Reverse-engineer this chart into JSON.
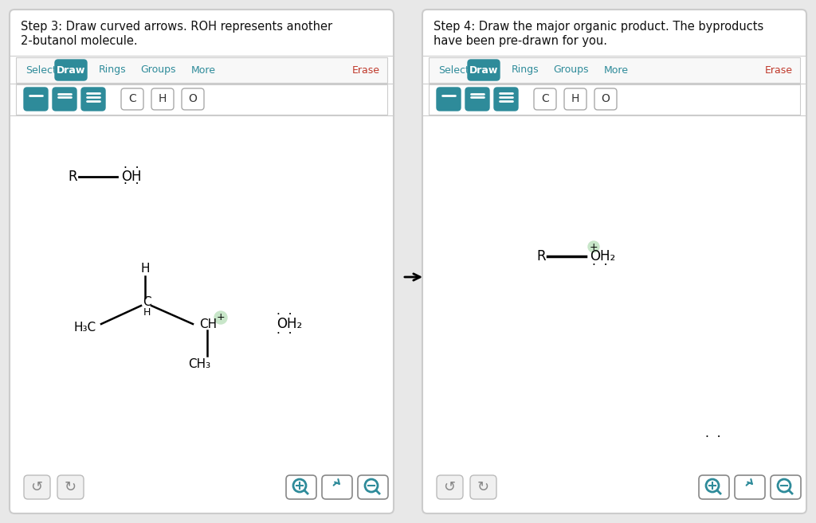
{
  "bg_color": "#ffffff",
  "outer_bg": "#e8e8e8",
  "panel_border": "#cccccc",
  "teal_color": "#2e8b9a",
  "text_color": "#000000",
  "gray_text": "#999999",
  "erase_color": "#c0392b",
  "step3_title": "Step 3: Draw curved arrows. ROH represents another\n2-butanol molecule.",
  "step4_title": "Step 4: Draw the major organic product. The byproducts\nhave been pre-drawn for you.",
  "toolbar_items": [
    "Select",
    "Draw",
    "Rings",
    "Groups",
    "More",
    "Erase"
  ]
}
